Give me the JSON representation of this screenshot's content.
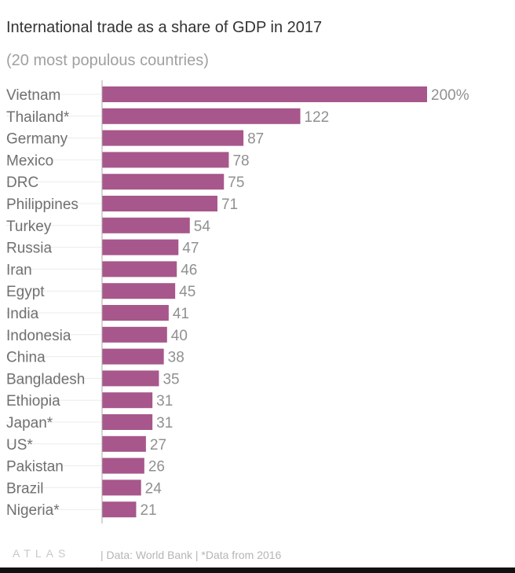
{
  "chart_data": {
    "type": "bar",
    "orientation": "horizontal",
    "title": "International trade as a share of GDP in 2017",
    "subtitle": "(20 most populous countries)",
    "categories": [
      "Vietnam",
      "Thailand*",
      "Germany",
      "Mexico",
      "DRC",
      "Philippines",
      "Turkey",
      "Russia",
      "Iran",
      "Egypt",
      "India",
      "Indonesia",
      "China",
      "Bangladesh",
      "Ethiopia",
      "Japan*",
      "US*",
      "Pakistan",
      "Brazil",
      "Nigeria*"
    ],
    "values": [
      200,
      122,
      87,
      78,
      75,
      71,
      54,
      47,
      46,
      45,
      41,
      40,
      38,
      35,
      31,
      31,
      27,
      26,
      24,
      21
    ],
    "value_labels": [
      "200%",
      "122",
      "87",
      "78",
      "75",
      "71",
      "54",
      "47",
      "46",
      "45",
      "41",
      "40",
      "38",
      "35",
      "31",
      "31",
      "27",
      "26",
      "24",
      "21"
    ],
    "xlim": [
      0,
      200
    ],
    "grid": false,
    "bar_color": "#a7578b"
  },
  "footer": {
    "logo": "ATLAS",
    "source": "| Data: World Bank | *Data from 2016"
  }
}
